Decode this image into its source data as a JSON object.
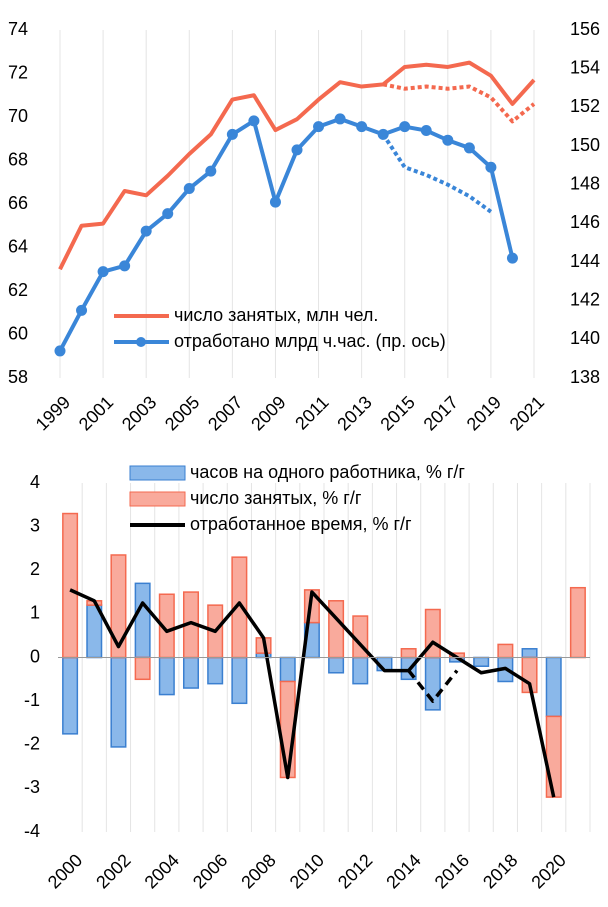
{
  "chart_data": [
    {
      "type": "line",
      "x": [
        1999,
        2000,
        2001,
        2002,
        2003,
        2004,
        2005,
        2006,
        2007,
        2008,
        2009,
        2010,
        2011,
        2012,
        2013,
        2014,
        2015,
        2016,
        2017,
        2018,
        2019,
        2020,
        2021
      ],
      "xlim": [
        1999,
        2021
      ],
      "xticks": [
        1999,
        2001,
        2003,
        2005,
        2007,
        2009,
        2011,
        2013,
        2015,
        2017,
        2019,
        2021
      ],
      "ylim": [
        58,
        74
      ],
      "yticks": [
        58,
        60,
        62,
        64,
        66,
        68,
        70,
        72,
        74
      ],
      "y2lim": [
        138,
        156
      ],
      "y2ticks": [
        138,
        140,
        142,
        144,
        146,
        148,
        150,
        152,
        154,
        156
      ],
      "grid": true,
      "legend": "lower right",
      "series": [
        {
          "name": "число занятых,  млн чел.",
          "color": "#f4694f",
          "values": [
            63.0,
            65.0,
            65.1,
            66.6,
            66.4,
            67.3,
            68.3,
            69.2,
            70.8,
            71.0,
            69.4,
            69.9,
            70.8,
            71.6,
            71.4,
            71.5,
            72.3,
            72.4,
            72.3,
            72.5,
            71.9,
            70.6,
            71.7
          ]
        },
        {
          "name": "отработано млрд ч.час. (пр.  ось)",
          "color": "#3a86d8",
          "axis": "y2",
          "marker": true,
          "values": [
            139.4,
            141.5,
            143.5,
            143.8,
            145.6,
            146.5,
            147.8,
            148.7,
            150.6,
            151.3,
            147.1,
            149.8,
            151.0,
            151.4,
            151.0,
            150.6,
            151.0,
            150.8,
            150.3,
            149.9,
            148.9,
            144.2,
            null
          ]
        },
        {
          "color": "#f4694f",
          "style": "dotted",
          "values": [
            null,
            null,
            null,
            null,
            null,
            null,
            null,
            null,
            null,
            null,
            null,
            null,
            null,
            null,
            null,
            71.5,
            71.3,
            71.4,
            71.3,
            71.4,
            70.9,
            69.8,
            70.6
          ]
        },
        {
          "color": "#3a86d8",
          "style": "dotted",
          "axis": "y2",
          "values": [
            null,
            null,
            null,
            null,
            null,
            null,
            null,
            null,
            null,
            null,
            null,
            null,
            null,
            null,
            null,
            150.6,
            148.9,
            148.5,
            148.0,
            147.4,
            146.6,
            null,
            null
          ]
        }
      ]
    },
    {
      "type": "bar",
      "categories": [
        "2000",
        null,
        "2002",
        null,
        "2004",
        null,
        "2006",
        null,
        "2008",
        null,
        "2010",
        null,
        "2012",
        null,
        "2014",
        null,
        "2016",
        null,
        "2018",
        null,
        "2020",
        null
      ],
      "ylim": [
        -4,
        4
      ],
      "yticks": [
        -4,
        -3,
        -2,
        -1,
        0,
        1,
        2,
        3,
        4
      ],
      "grid": true,
      "legend": "upper center",
      "series": [
        {
          "name": "часов на одного работника, % г/г",
          "color": "#8ab8ea",
          "edge": "#3a7fd0",
          "values": [
            -1.75,
            1.2,
            -2.05,
            1.7,
            -0.85,
            -0.7,
            -0.6,
            -1.05,
            0.1,
            -0.55,
            0.8,
            -0.35,
            -0.6,
            -0.3,
            -0.5,
            -1.2,
            -0.1,
            -0.2,
            -0.55,
            0.2,
            -1.35,
            null
          ]
        },
        {
          "name": "число занятых, % г/г",
          "color": "#f9aa9c",
          "edge": "#f4694f",
          "values": [
            3.3,
            0.1,
            2.35,
            -0.5,
            1.45,
            1.5,
            1.2,
            2.3,
            0.35,
            -2.2,
            0.75,
            1.3,
            0.95,
            0.0,
            0.2,
            1.1,
            0.1,
            0.0,
            0.3,
            -0.8,
            -1.85,
            1.6
          ]
        },
        {
          "name": "отработанное время,  % г/г",
          "color": "#000000",
          "type": "line",
          "values": [
            1.55,
            1.3,
            0.25,
            1.25,
            0.6,
            0.8,
            0.6,
            1.25,
            0.45,
            -2.75,
            1.5,
            0.9,
            0.3,
            -0.3,
            -0.3,
            0.35,
            0.0,
            -0.35,
            -0.25,
            -0.6,
            -3.2,
            null
          ]
        },
        {
          "color": "#000000",
          "type": "line",
          "style": "dashed",
          "values": [
            null,
            null,
            null,
            null,
            null,
            null,
            null,
            null,
            null,
            null,
            null,
            null,
            null,
            null,
            -0.3,
            -1.0,
            -0.3,
            null,
            null,
            null,
            null,
            null
          ]
        }
      ]
    }
  ]
}
